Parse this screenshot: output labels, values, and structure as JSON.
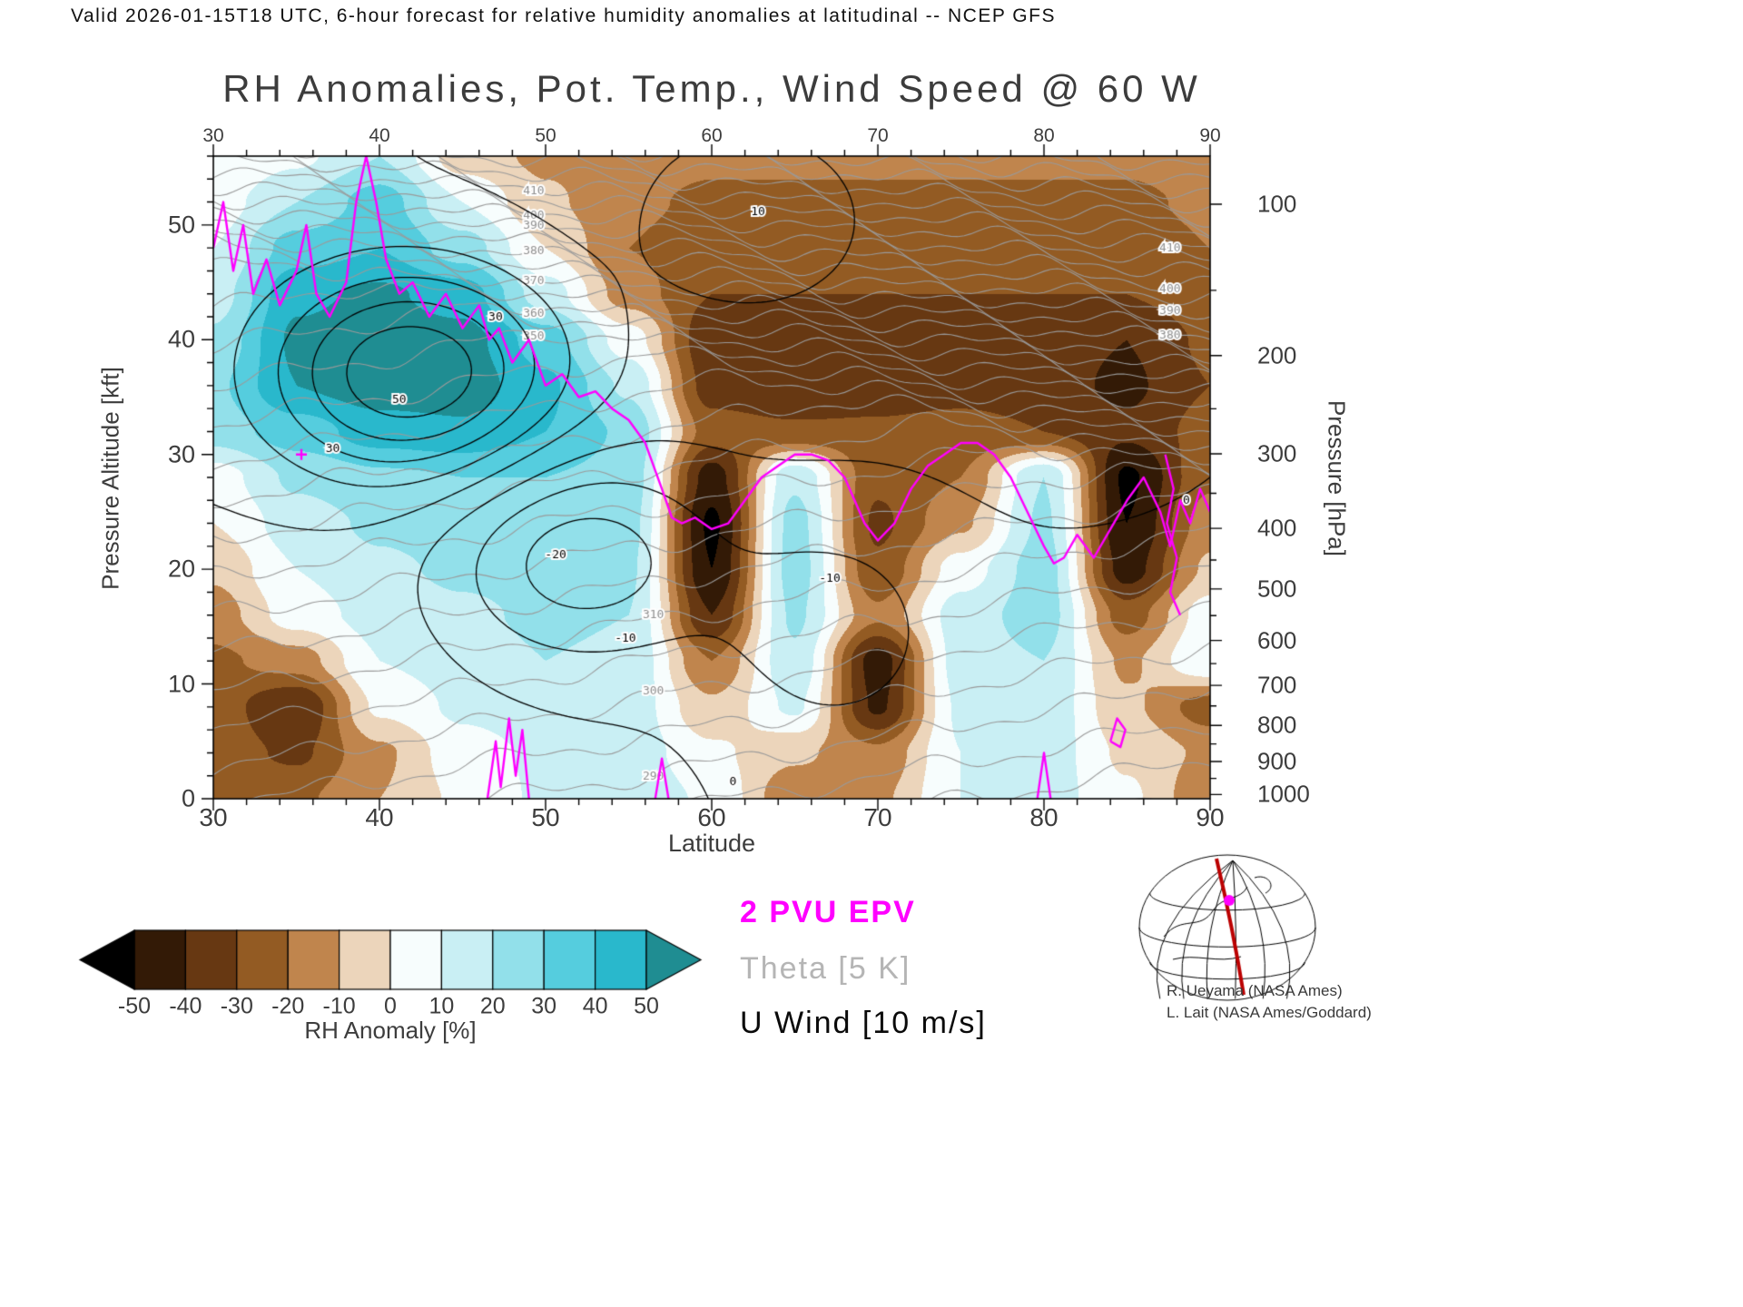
{
  "header": {
    "valid_line": "Valid 2026-01-15T18 UTC, 6-hour forecast for relative humidity anomalies at latitudinal -- NCEP GFS"
  },
  "chart": {
    "title": "RH Anomalies, Pot. Temp., Wind Speed @ 60 W",
    "xlabel": "Latitude",
    "ylabel_left": "Pressure Altitude [kft]",
    "ylabel_right": "Pressure [hPa]"
  },
  "legend": {
    "epv": "2 PVU EPV",
    "theta": "Theta [5 K]",
    "uwind": "U Wind [10 m/s]"
  },
  "colorbar": {
    "label": "RH Anomaly [%]",
    "ticks": [
      -50,
      -40,
      -30,
      -20,
      -10,
      0,
      10,
      20,
      30,
      40,
      50
    ],
    "segment_colors": [
      "#331a06",
      "#673812",
      "#935b23",
      "#c0854d",
      "#ecd5bb",
      "#f7fdfd",
      "#c9eff4",
      "#92e0ea",
      "#55cdde",
      "#29b8cc"
    ],
    "under_color": "#000000",
    "over_color": "#1f8d92"
  },
  "credits": [
    "R. Ueyama (NASA Ames)",
    "L. Lait (NASA Ames/Goddard)"
  ],
  "chart_data": {
    "type": "heatmap",
    "x": {
      "label": "Latitude",
      "range": [
        30,
        90
      ],
      "major_ticks": [
        30,
        40,
        50,
        60,
        70,
        80,
        90
      ],
      "minor_step": 2
    },
    "y_left": {
      "label": "Pressure Altitude [kft]",
      "range": [
        0,
        56
      ],
      "major_ticks": [
        0,
        10,
        20,
        30,
        40,
        50
      ],
      "minor_step": 2
    },
    "y_right": {
      "label": "Pressure [hPa]",
      "ticks": [
        100,
        200,
        300,
        400,
        500,
        600,
        700,
        800,
        900,
        1000
      ]
    },
    "rh_grid": {
      "units": "%",
      "lats": [
        30,
        35,
        40,
        45,
        50,
        55,
        60,
        65,
        70,
        75,
        80,
        85,
        90
      ],
      "alts_kft": [
        0,
        4,
        8,
        12,
        16,
        20,
        24,
        28,
        32,
        36,
        40,
        44,
        48,
        52,
        56
      ],
      "values": [
        [
          -25,
          -22,
          -10,
          2,
          12,
          18,
          8,
          -18,
          -12,
          10,
          15,
          2,
          -18
        ],
        [
          -25,
          -32,
          -12,
          6,
          12,
          16,
          2,
          -8,
          -18,
          10,
          16,
          -2,
          -12
        ],
        [
          -25,
          -40,
          2,
          12,
          16,
          16,
          -8,
          12,
          -42,
          12,
          18,
          -8,
          -25
        ],
        [
          -22,
          -15,
          10,
          15,
          20,
          18,
          -20,
          18,
          -45,
          15,
          20,
          -12,
          10
        ],
        [
          -15,
          5,
          14,
          18,
          22,
          20,
          -40,
          22,
          -18,
          15,
          25,
          -25,
          5
        ],
        [
          -8,
          10,
          18,
          22,
          25,
          22,
          -50,
          25,
          -28,
          5,
          25,
          -45,
          -8
        ],
        [
          0,
          15,
          22,
          26,
          28,
          24,
          -52,
          24,
          -32,
          -12,
          22,
          -50,
          -15
        ],
        [
          5,
          22,
          28,
          30,
          30,
          26,
          -45,
          18,
          -28,
          -20,
          20,
          -52,
          -22
        ],
        [
          25,
          35,
          45,
          48,
          40,
          28,
          -25,
          -28,
          -28,
          -26,
          -30,
          -38,
          -26
        ],
        [
          28,
          50,
          56,
          56,
          42,
          18,
          -35,
          -40,
          -36,
          -34,
          -36,
          -42,
          -30
        ],
        [
          22,
          52,
          56,
          54,
          35,
          5,
          -38,
          -38,
          -38,
          -36,
          -36,
          -40,
          -28
        ],
        [
          15,
          48,
          52,
          45,
          15,
          -15,
          -30,
          -30,
          -30,
          -30,
          -30,
          -30,
          -24
        ],
        [
          10,
          35,
          40,
          25,
          0,
          -20,
          -26,
          -26,
          -26,
          -26,
          -26,
          -26,
          -20
        ],
        [
          5,
          20,
          35,
          10,
          -8,
          -18,
          -22,
          -22,
          -22,
          -22,
          -22,
          -22,
          -18
        ],
        [
          0,
          8,
          20,
          -5,
          -12,
          -15,
          -18,
          -18,
          -18,
          -18,
          -18,
          -18,
          -15
        ]
      ]
    },
    "theta_contours": {
      "interval_K": 5,
      "min_K": 270,
      "max_K": 465,
      "labels": [
        {
          "value": 350,
          "lat": 49.3
        },
        {
          "value": 360,
          "lat": 49.3
        },
        {
          "value": 370,
          "lat": 49.3
        },
        {
          "value": 380,
          "lat": 49.3
        },
        {
          "value": 390,
          "lat": 49.3
        },
        {
          "value": 400,
          "lat": 49.3
        },
        {
          "value": 410,
          "lat": 49.3
        },
        {
          "value": 380,
          "lat": 87.6
        },
        {
          "value": 390,
          "lat": 87.6
        },
        {
          "value": 400,
          "lat": 87.6
        },
        {
          "value": 410,
          "lat": 87.6
        },
        {
          "value": 290,
          "lat": 56.5
        },
        {
          "value": 300,
          "lat": 56.5
        },
        {
          "value": 310,
          "lat": 56.5
        }
      ]
    },
    "u_wind_contours": {
      "interval_ms": 10,
      "levels": [
        -30,
        -20,
        -10,
        0,
        10,
        20,
        30,
        40,
        50
      ],
      "labels": [
        {
          "text": "50",
          "lat": 41.2,
          "alt": 34.8
        },
        {
          "text": "30",
          "lat": 37.2,
          "alt": 30.5
        },
        {
          "text": "30",
          "lat": 47.0,
          "alt": 42.0
        },
        {
          "text": "10",
          "lat": 62.8,
          "alt": 51.2
        },
        {
          "text": "-20",
          "lat": 50.4,
          "alt": 21.3
        },
        {
          "text": "-10",
          "lat": 54.6,
          "alt": 14.0
        },
        {
          "text": "-10",
          "lat": 66.9,
          "alt": 19.2
        },
        {
          "text": "0",
          "lat": 61.5,
          "alt": 1.5
        },
        {
          "text": "0",
          "lat": 88.8,
          "alt": 26.0
        }
      ]
    },
    "epv_2pvu": {
      "color": "#ff00ff",
      "main_line_lat_kft": [
        [
          30,
          48
        ],
        [
          30.6,
          52
        ],
        [
          31.2,
          46
        ],
        [
          31.8,
          50
        ],
        [
          32.4,
          44
        ],
        [
          33.2,
          47
        ],
        [
          34,
          43
        ],
        [
          35,
          46
        ],
        [
          35.6,
          50
        ],
        [
          36.2,
          44
        ],
        [
          37,
          42
        ],
        [
          38,
          45
        ],
        [
          38.6,
          52
        ],
        [
          39.2,
          56
        ],
        [
          39.8,
          52
        ],
        [
          40.4,
          47
        ],
        [
          41.2,
          44
        ],
        [
          42,
          45
        ],
        [
          43,
          42
        ],
        [
          44,
          44
        ],
        [
          45,
          41
        ],
        [
          46,
          43
        ],
        [
          46.6,
          40
        ],
        [
          47.2,
          41
        ],
        [
          48,
          38
        ],
        [
          49,
          40
        ],
        [
          50,
          36
        ],
        [
          51,
          37
        ],
        [
          52,
          35
        ],
        [
          53,
          35.5
        ],
        [
          54,
          34
        ],
        [
          55,
          33
        ],
        [
          56,
          31
        ],
        [
          57,
          27
        ],
        [
          57.6,
          24.5
        ],
        [
          58.2,
          24
        ],
        [
          59,
          24.5
        ],
        [
          60,
          23.5
        ],
        [
          61,
          24
        ],
        [
          62,
          26
        ],
        [
          63,
          28
        ],
        [
          64,
          29
        ],
        [
          65,
          30
        ],
        [
          66,
          30
        ],
        [
          67,
          29.5
        ],
        [
          68,
          28
        ],
        [
          68.6,
          26
        ],
        [
          69.2,
          24
        ],
        [
          70,
          22.5
        ],
        [
          71,
          24
        ],
        [
          72,
          27
        ],
        [
          73,
          29
        ],
        [
          74,
          30
        ],
        [
          75,
          31
        ],
        [
          76,
          31
        ],
        [
          77,
          30
        ],
        [
          78,
          28
        ],
        [
          79,
          25
        ],
        [
          80,
          22
        ],
        [
          80.6,
          20.5
        ],
        [
          81.2,
          21
        ],
        [
          82,
          23
        ],
        [
          83,
          21
        ],
        [
          84,
          23.5
        ],
        [
          85,
          26
        ],
        [
          86,
          28
        ],
        [
          87,
          25
        ],
        [
          87.6,
          22
        ],
        [
          88.2,
          26
        ],
        [
          88.8,
          24
        ],
        [
          89.4,
          27
        ],
        [
          90,
          25
        ]
      ],
      "extra_segments": [
        [
          [
            46.5,
            0
          ],
          [
            47,
            5
          ],
          [
            47.3,
            1
          ],
          [
            47.8,
            7
          ],
          [
            48.2,
            2
          ],
          [
            48.6,
            6
          ],
          [
            49,
            0
          ]
        ],
        [
          [
            56.6,
            0
          ],
          [
            57,
            3.5
          ],
          [
            57.4,
            0
          ]
        ],
        [
          [
            79.6,
            0
          ],
          [
            80,
            4
          ],
          [
            80.4,
            0
          ]
        ],
        [
          [
            84,
            5
          ],
          [
            84.4,
            7
          ],
          [
            84.9,
            6
          ],
          [
            84.6,
            4.5
          ],
          [
            84,
            5
          ]
        ],
        [
          [
            87.3,
            30
          ],
          [
            87.8,
            27
          ],
          [
            87.4,
            24
          ],
          [
            88,
            21
          ],
          [
            87.6,
            18
          ],
          [
            88.2,
            16
          ]
        ]
      ],
      "plus_marker_lat_kft": [
        35.3,
        30
      ]
    }
  }
}
